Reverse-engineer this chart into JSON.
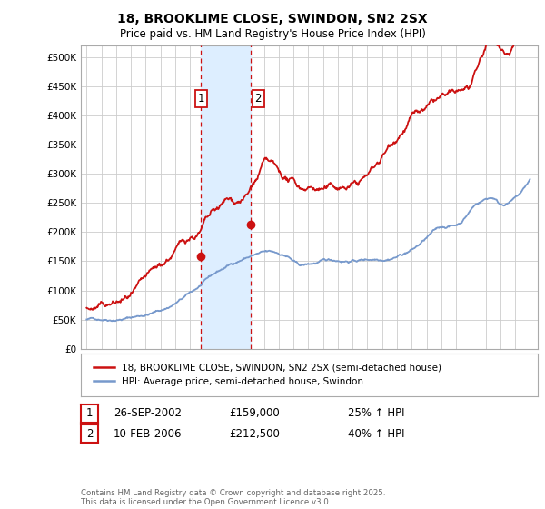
{
  "title1": "18, BROOKLIME CLOSE, SWINDON, SN2 2SX",
  "title2": "Price paid vs. HM Land Registry's House Price Index (HPI)",
  "ylim": [
    0,
    520000
  ],
  "yticks": [
    0,
    50000,
    100000,
    150000,
    200000,
    250000,
    300000,
    350000,
    400000,
    450000,
    500000
  ],
  "ytick_labels": [
    "£0",
    "£50K",
    "£100K",
    "£150K",
    "£200K",
    "£250K",
    "£300K",
    "£350K",
    "£400K",
    "£450K",
    "£500K"
  ],
  "hpi_color": "#7799cc",
  "price_color": "#cc1111",
  "shade_color": "#ddeeff",
  "vline_color": "#cc1111",
  "sale1_x": 2002.74,
  "sale2_x": 2006.11,
  "sale1_price": 159000,
  "sale2_price": 212500,
  "background_color": "#ffffff",
  "grid_color": "#cccccc",
  "legend_line1": "18, BROOKLIME CLOSE, SWINDON, SN2 2SX (semi-detached house)",
  "legend_line2": "HPI: Average price, semi-detached house, Swindon",
  "table_row1_date": "26-SEP-2002",
  "table_row1_price": "£159,000",
  "table_row1_hpi": "25% ↑ HPI",
  "table_row2_date": "10-FEB-2006",
  "table_row2_price": "£212,500",
  "table_row2_hpi": "40% ↑ HPI",
  "footer": "Contains HM Land Registry data © Crown copyright and database right 2025.\nThis data is licensed under the Open Government Licence v3.0."
}
